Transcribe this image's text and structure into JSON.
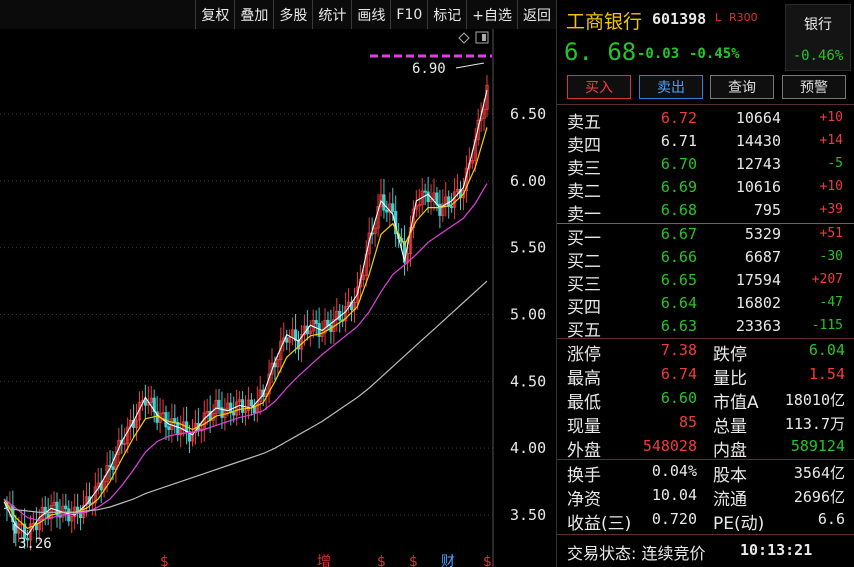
{
  "toolbar": {
    "items": [
      "复权",
      "叠加",
      "多股",
      "统计",
      "画线",
      "F10",
      "标记",
      "+自选",
      "返回"
    ]
  },
  "chart": {
    "y_ticks": [
      "6.50",
      "6.00",
      "5.50",
      "5.00",
      "4.50",
      "4.00",
      "3.50"
    ],
    "high_label": "6.90",
    "low_label": "3.26",
    "bottom_markers": [
      {
        "text": "$",
        "color": "#e03030"
      },
      {
        "text": "增",
        "color": "#e03030"
      },
      {
        "text": "$",
        "color": "#e03030"
      },
      {
        "text": "$",
        "color": "#e03030"
      },
      {
        "text": "财",
        "color": "#4aa0ff"
      },
      {
        "text": "$",
        "color": "#e03030"
      }
    ]
  },
  "chart_data": {
    "type": "line",
    "y_axis_ticks": [
      3.5,
      4.0,
      4.5,
      5.0,
      5.5,
      6.0,
      6.5
    ],
    "ylim": [
      3.2,
      7.0
    ],
    "annotations": {
      "period_high": 6.9,
      "period_low": 3.26
    },
    "series": [
      {
        "values": [
          3.6,
          3.42,
          3.35,
          3.48,
          3.55,
          3.52,
          3.5,
          3.58,
          3.7,
          3.85,
          4.05,
          4.2,
          4.38,
          4.25,
          4.18,
          4.15,
          4.1,
          4.22,
          4.3,
          4.28,
          4.32,
          4.3,
          4.4,
          4.65,
          4.85,
          4.8,
          4.92,
          4.88,
          4.95,
          5.02,
          5.15,
          5.55,
          5.85,
          5.75,
          5.4,
          5.85,
          5.9,
          5.8,
          5.85,
          5.95,
          6.3,
          6.68
        ]
      },
      {
        "values": [
          3.62,
          3.48,
          3.4,
          3.44,
          3.5,
          3.52,
          3.52,
          3.55,
          3.62,
          3.75,
          3.92,
          4.08,
          4.22,
          4.24,
          4.2,
          4.18,
          4.14,
          4.18,
          4.24,
          4.26,
          4.29,
          4.3,
          4.34,
          4.5,
          4.68,
          4.76,
          4.84,
          4.86,
          4.91,
          4.97,
          5.06,
          5.3,
          5.6,
          5.68,
          5.52,
          5.7,
          5.8,
          5.8,
          5.82,
          5.9,
          6.1,
          6.4
        ]
      },
      {
        "values": [
          3.62,
          3.55,
          3.48,
          3.46,
          3.48,
          3.5,
          3.51,
          3.52,
          3.56,
          3.62,
          3.72,
          3.84,
          3.97,
          4.05,
          4.09,
          4.11,
          4.12,
          4.14,
          4.17,
          4.2,
          4.23,
          4.25,
          4.28,
          4.35,
          4.45,
          4.54,
          4.62,
          4.7,
          4.77,
          4.84,
          4.91,
          5.02,
          5.17,
          5.3,
          5.37,
          5.45,
          5.54,
          5.6,
          5.66,
          5.72,
          5.83,
          5.98
        ]
      },
      {
        "values": [
          3.55,
          3.54,
          3.53,
          3.52,
          3.52,
          3.52,
          3.52,
          3.53,
          3.54,
          3.56,
          3.59,
          3.62,
          3.66,
          3.69,
          3.72,
          3.75,
          3.78,
          3.81,
          3.84,
          3.87,
          3.9,
          3.93,
          3.96,
          4.0,
          4.05,
          4.1,
          4.15,
          4.2,
          4.26,
          4.32,
          4.38,
          4.45,
          4.53,
          4.61,
          4.69,
          4.77,
          4.85,
          4.93,
          5.01,
          5.09,
          5.17,
          5.25
        ]
      }
    ],
    "colors": [
      "#ffffff",
      "#f5d000",
      "#e040e0",
      "#2ecc2e",
      "#bbbbbb"
    ]
  },
  "quote": {
    "name": "工商银行",
    "code": "601398",
    "flag_l": "L",
    "flag_r": "R300",
    "sector_name": "银行",
    "sector_change": "-0.46%",
    "last": "6. 68",
    "change": "-0.03",
    "change_pct": "-0.45%",
    "buttons": {
      "buy": "买入",
      "sell": "卖出",
      "query": "查询",
      "alert": "预警"
    }
  },
  "order_book": {
    "asks": [
      {
        "label": "卖五",
        "price": "6.72",
        "vol": "10664",
        "chg": "+10",
        "price_color": "red",
        "chg_color": "red"
      },
      {
        "label": "卖四",
        "price": "6.71",
        "vol": "14430",
        "chg": "+14",
        "price_color": "white",
        "chg_color": "red"
      },
      {
        "label": "卖三",
        "price": "6.70",
        "vol": "12743",
        "chg": "-5",
        "price_color": "green",
        "chg_color": "green"
      },
      {
        "label": "卖二",
        "price": "6.69",
        "vol": "10616",
        "chg": "+10",
        "price_color": "green",
        "chg_color": "red"
      },
      {
        "label": "卖一",
        "price": "6.68",
        "vol": "795",
        "chg": "+39",
        "price_color": "green",
        "chg_color": "red"
      }
    ],
    "bids": [
      {
        "label": "买一",
        "price": "6.67",
        "vol": "5329",
        "chg": "+51",
        "price_color": "green",
        "chg_color": "red"
      },
      {
        "label": "买二",
        "price": "6.66",
        "vol": "6687",
        "chg": "-30",
        "price_color": "green",
        "chg_color": "green"
      },
      {
        "label": "买三",
        "price": "6.65",
        "vol": "17594",
        "chg": "+207",
        "price_color": "green",
        "chg_color": "red"
      },
      {
        "label": "买四",
        "price": "6.64",
        "vol": "16802",
        "chg": "-47",
        "price_color": "green",
        "chg_color": "green"
      },
      {
        "label": "买五",
        "price": "6.63",
        "vol": "23363",
        "chg": "-115",
        "price_color": "green",
        "chg_color": "green"
      }
    ]
  },
  "stats": [
    {
      "l1": "涨停",
      "v1": "7.38",
      "c1": "red",
      "l2": "跌停",
      "v2": "6.04",
      "c2": "green"
    },
    {
      "l1": "最高",
      "v1": "6.74",
      "c1": "red",
      "l2": "量比",
      "v2": "1.54",
      "c2": "red"
    },
    {
      "l1": "最低",
      "v1": "6.60",
      "c1": "green",
      "l2": "市值A",
      "v2": "18010亿",
      "c2": "white"
    },
    {
      "l1": "现量",
      "v1": "85",
      "c1": "red",
      "l2": "总量",
      "v2": "113.7万",
      "c2": "white"
    },
    {
      "l1": "外盘",
      "v1": "548028",
      "c1": "red",
      "l2": "内盘",
      "v2": "589124",
      "c2": "green"
    }
  ],
  "stats2": [
    {
      "l1": "换手",
      "v1": "0.04%",
      "c1": "white",
      "l2": "股本",
      "v2": "3564亿",
      "c2": "white"
    },
    {
      "l1": "净资",
      "v1": "10.04",
      "c1": "white",
      "l2": "流通",
      "v2": "2696亿",
      "c2": "white"
    },
    {
      "l1": "收益(三)",
      "v1": "0.720",
      "c1": "white",
      "l2": "PE(动)",
      "v2": "6.6",
      "c2": "white"
    }
  ],
  "status": {
    "text": "交易状态: 连续竞价",
    "time": "10:13:21"
  }
}
